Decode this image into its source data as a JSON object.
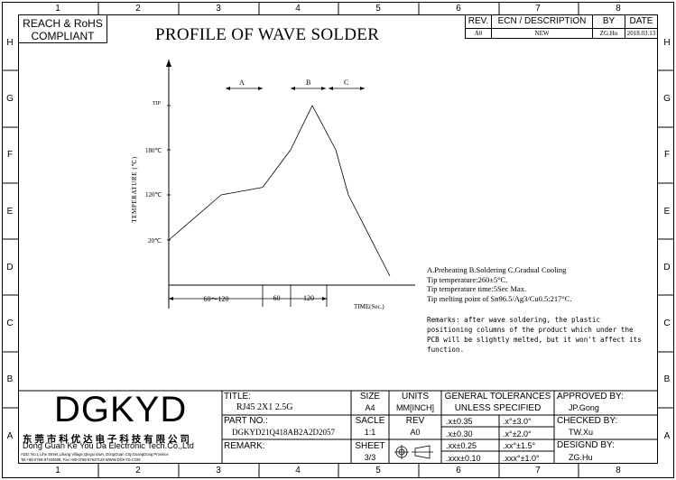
{
  "frame": {
    "col_numbers": [
      "1",
      "2",
      "3",
      "4",
      "5",
      "6",
      "7",
      "8"
    ],
    "row_letters": [
      "H",
      "G",
      "F",
      "E",
      "D",
      "C",
      "B",
      "A"
    ]
  },
  "compliance": {
    "line1": "REACH & RoHS",
    "line2": "COMPLIANT"
  },
  "title": "PROFILE OF WAVE SOLDER",
  "revision": {
    "headers": {
      "rev": "REV.",
      "ecn": "ECN / DESCRIPTION",
      "by": "BY",
      "date": "DATE"
    },
    "row": {
      "rev": "A0",
      "ecn": "NEW",
      "by": "ZG.Hu",
      "date": "2018.03.13"
    }
  },
  "chart_data": {
    "type": "line",
    "title": "",
    "ylabel": "TEMPERATURE (℃)",
    "xlabel": "TIME(Sec.)",
    "y_ticks": [
      "TIP",
      "180℃",
      "120℃",
      "20℃"
    ],
    "zones": [
      "A",
      "B",
      "C"
    ],
    "time_segments": [
      "60～120",
      "60",
      "120"
    ],
    "profile": [
      {
        "stage": "start",
        "temp_c": 20
      },
      {
        "stage": "preheat_end",
        "temp_c": 120
      },
      {
        "stage": "plateau_end",
        "temp_c": 130
      },
      {
        "stage": "ramp",
        "temp_c": 180
      },
      {
        "stage": "peak",
        "temp_c": 260
      },
      {
        "stage": "cool_a",
        "temp_c": 180
      },
      {
        "stage": "cool_b",
        "temp_c": 120
      },
      {
        "stage": "end",
        "temp_c": 0
      }
    ]
  },
  "legend": {
    "line1": "A.Preheating  B.Soldering  C.Gradual Cooling",
    "line2": "Tip temperature:260±5°C.",
    "line3": "Tip temperature time:5Sec Max.",
    "line4": "Tip melting point of Sn96.5/Ag3/Cu0.5:217°C."
  },
  "remarks": {
    "line1": "Remarks: after wave soldering, the plastic",
    "line2": "positioning columns of the product  which under the",
    "line3": "PCB will be slightly melted, but it won't affect its",
    "line4": "function."
  },
  "company": {
    "logo": "DGKYD",
    "cn_name": "东 莞 市 科 优 达 电 子 科 技 有 限 公 司",
    "en_name": "Dong Guan Ke You Da Electronic Tech.Co.,Ltd",
    "address": "ADD: No.1 Lihe Street,Lihang Village,Qingxi town, DongGuan City,GuangDong Province",
    "contact": "Tel:+86-0769-87334608; Fax:+86-0769-87647129 WWW.DGKYD.COM"
  },
  "title_block": {
    "title_label": "TITLE:",
    "title_value": "RJ45 2X1 2.5G",
    "part_label": "PART NO.:",
    "part_value": "DGKYD21Q418AB2A2D2057",
    "remark_label": "REMARK:",
    "size_label": "SIZE",
    "size_value": "A4",
    "units_label": "UNITS",
    "units_value": "MM[INCH]",
    "scale_label": "SACLE",
    "scale_value": "1:1",
    "rev_label": "REV",
    "rev_value": "A0",
    "sheet_label": "SHEET",
    "sheet_value": "3/3",
    "tol_title1": "GENERAL TOLERANCES",
    "tol_title2": "UNLESS SPECIFIED",
    "tol": [
      [
        ".x±0.35",
        ".x°±3.0°"
      ],
      [
        ".x±0.30",
        ".x°±2.0°"
      ],
      [
        ".xx±0.25",
        ".xx°±1.5°"
      ],
      [
        ".xxx±0.10",
        ".xxx°±1.0°"
      ]
    ],
    "approved_label": "APPROVED BY:",
    "approved_value": "JP.Gong",
    "checked_label": "CHECKED BY:",
    "checked_value": "TW.Xu",
    "designed_label": "DESIGND BY:",
    "designed_value": "ZG.Hu"
  }
}
